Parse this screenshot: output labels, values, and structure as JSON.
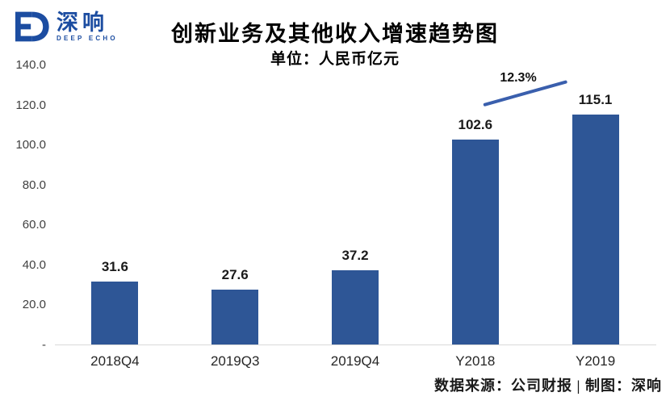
{
  "logo": {
    "brand_cn": "深响",
    "brand_en": "DEEP ECHO",
    "color": "#1C4DA1"
  },
  "header": {
    "title": "创新业务及其他收入增速趋势图",
    "subtitle": "单位：人民币亿元"
  },
  "chart_data": {
    "type": "bar",
    "title": "创新业务及其他收入增速趋势图",
    "subtitle": "单位：人民币亿元",
    "categories": [
      "2018Q4",
      "2019Q3",
      "2019Q4",
      "Y2018",
      "Y2019"
    ],
    "values": [
      31.6,
      27.6,
      37.2,
      102.6,
      115.1
    ],
    "value_labels": [
      "31.6",
      "27.6",
      "37.2",
      "102.6",
      "115.1"
    ],
    "xlabel": "",
    "ylabel": "",
    "ylim": [
      0,
      140
    ],
    "ytick_values": [
      140,
      120,
      100,
      80,
      60,
      40,
      20,
      0
    ],
    "ytick_labels": [
      "140.0",
      "120.0",
      "100.0",
      "80.0",
      "60.0",
      "40.0",
      "20.0",
      "-"
    ],
    "grid": false,
    "legend": null,
    "bar_color": "#2E5696",
    "annotation": {
      "label": "12.3%",
      "from_category": "Y2018",
      "to_category": "Y2019",
      "line_color": "#3A5FAD"
    }
  },
  "footer": {
    "source": "数据来源：公司财报 | 制图：深响"
  }
}
